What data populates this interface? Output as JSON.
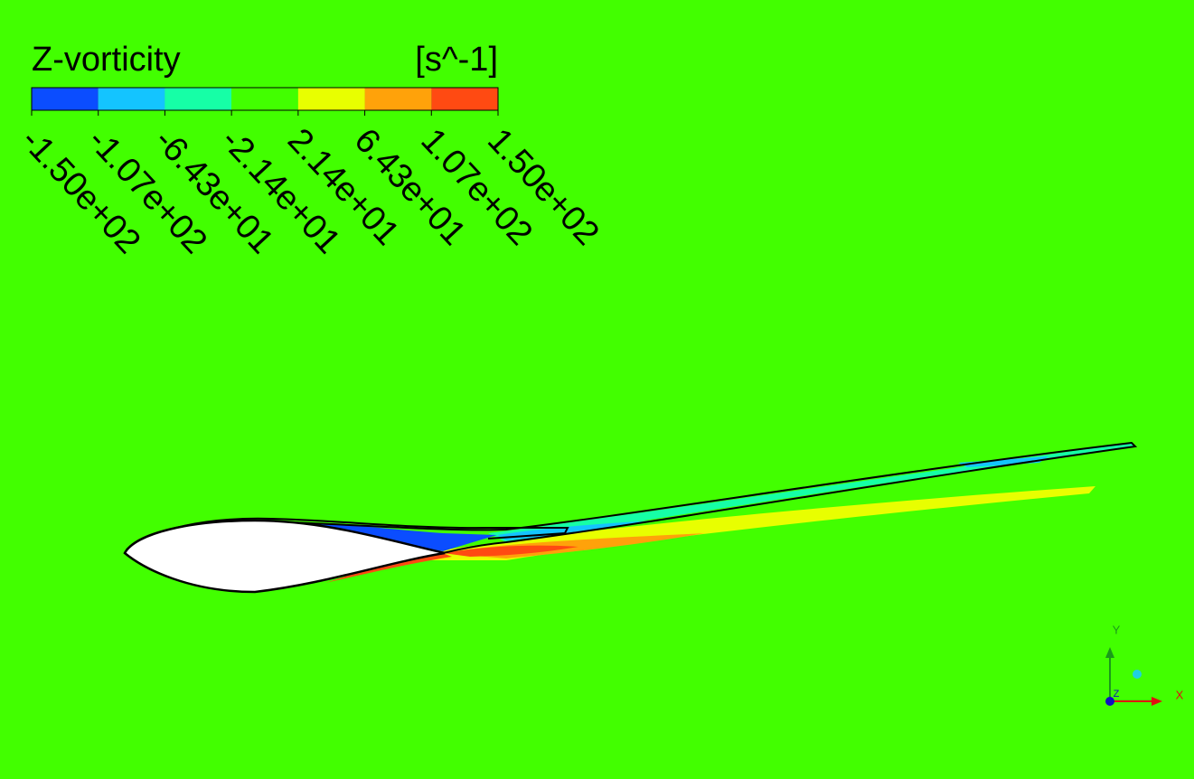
{
  "legend": {
    "title": "Z-vorticity",
    "unit": "[s^-1]",
    "colors": [
      "#0b4dff",
      "#14c4ff",
      "#16ffa6",
      "#42ff00",
      "#e8ff00",
      "#ffa20a",
      "#ff4a12"
    ],
    "ticks": [
      "-1.50e+02",
      "-1.07e+02",
      "-6.43e+01",
      "-2.14e+01",
      "2.14e+01",
      "6.43e+01",
      "1.07e+02",
      "1.50e+02"
    ]
  },
  "triad": {
    "x": "X",
    "y": "Y",
    "z": "Z"
  }
}
